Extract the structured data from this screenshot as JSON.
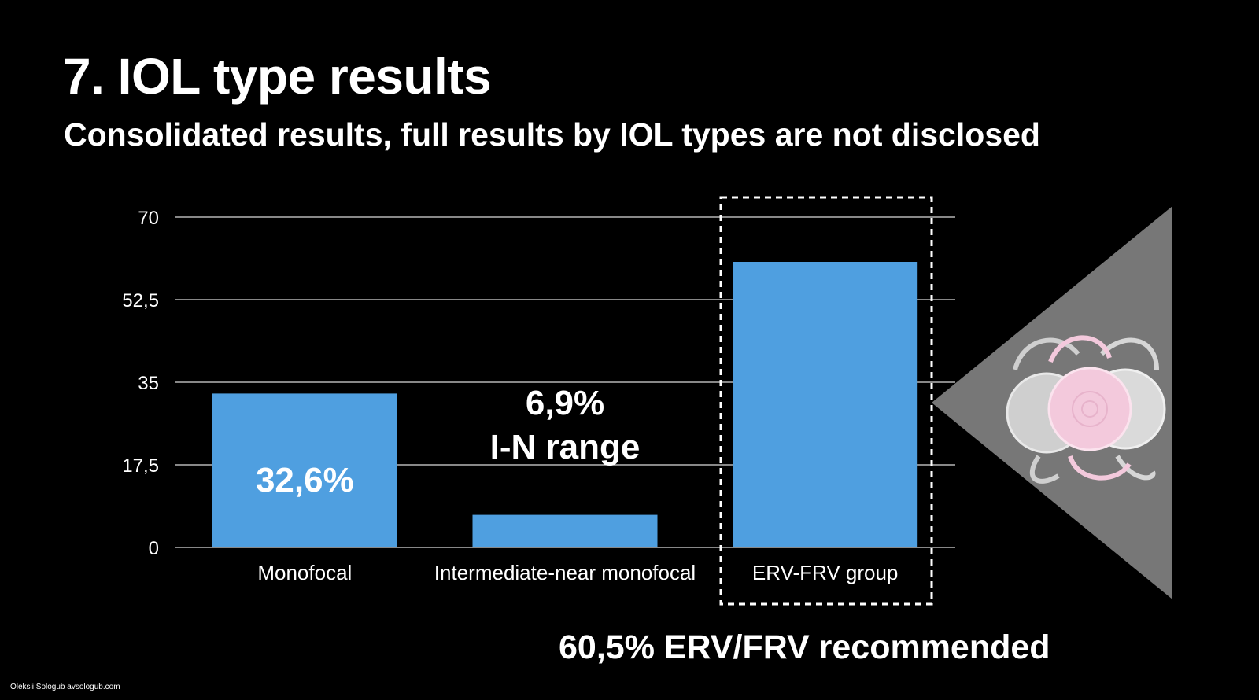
{
  "slide": {
    "title": "7. IOL type results",
    "subtitle": "Consolidated results, full results by IOL types are not disclosed",
    "credit": "Oleksii Sologub avsologub.com",
    "callout": "60,5% ERV/FRV recommended"
  },
  "colors": {
    "background": "#000000",
    "bar": "#4f9fe0",
    "text": "#ffffff",
    "gridline": "#d9d9d9",
    "triangle": "#777777",
    "lens_pink": "#f3c9dc",
    "lens_gray": "#d8d8d8"
  },
  "chart_data": {
    "type": "bar",
    "title": "",
    "xlabel": "",
    "ylabel": "",
    "categories": [
      "Monofocal",
      "Intermediate-near monofocal",
      "ERV-FRV group"
    ],
    "values": [
      32.6,
      6.9,
      60.5
    ],
    "ylim": [
      0,
      70
    ],
    "yticks": [
      0,
      17.5,
      35,
      52.5,
      70
    ],
    "ytick_labels": [
      "0",
      "17,5",
      "35",
      "52,5",
      "70"
    ],
    "grid": true,
    "legend": "none",
    "annotations": [
      {
        "category": "Monofocal",
        "text": "32,6%",
        "placement": "inside bar"
      },
      {
        "category": "Intermediate-near monofocal",
        "text": "6,9%",
        "placement": "above bar"
      },
      {
        "category": "Intermediate-near monofocal",
        "text": "I-N range",
        "placement": "above bar"
      }
    ],
    "highlight": {
      "category": "ERV-FRV group",
      "style": "dashed box"
    }
  },
  "illustration": {
    "icon": "intraocular-lens-trio-icon"
  }
}
